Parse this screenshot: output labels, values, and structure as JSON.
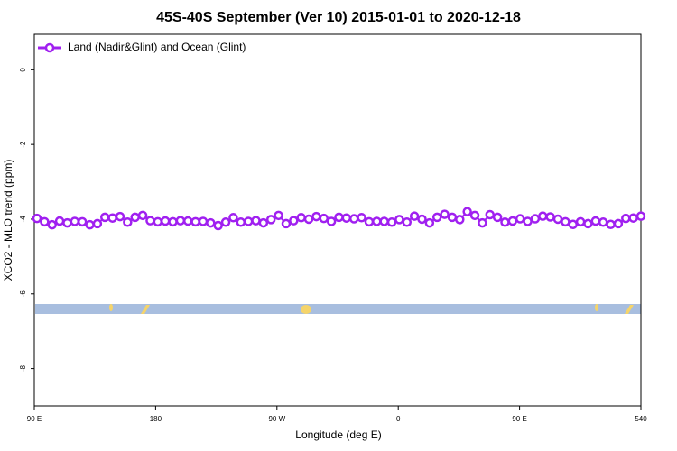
{
  "chart_data": {
    "type": "line",
    "title": "45S-40S September (Ver 10)   2015-01-01 to 2020-12-18",
    "xlabel": "Longitude (deg E)",
    "ylabel": "XCO2 - MLO trend (ppm)",
    "x": [
      92,
      97.6,
      103.2,
      108.8,
      114.4,
      120,
      125.6,
      131.2,
      136.8,
      142.4,
      148,
      153.6,
      159.2,
      164.8,
      170.4,
      176,
      181.6,
      187.2,
      192.8,
      198.4,
      204,
      209.6,
      215.2,
      220.8,
      226.4,
      232,
      237.6,
      243.2,
      248.8,
      254.4,
      260,
      265.6,
      271.2,
      276.8,
      282.4,
      288,
      293.6,
      299.2,
      304.8,
      310.4,
      316,
      321.6,
      327.2,
      332.8,
      338.4,
      344,
      349.6,
      355.2,
      360.8,
      366.4,
      372,
      377.6,
      383.2,
      388.8,
      394.4,
      400,
      405.6,
      411.2,
      416.8,
      422.4,
      428,
      433.6,
      439.2,
      444.8,
      450.4,
      456,
      461.6,
      467.2,
      472.8,
      478.4,
      484,
      489.6,
      495.2,
      500.8,
      506.4,
      512,
      517.6,
      523.2,
      528.8,
      534.4,
      540
    ],
    "series": [
      {
        "name": "Land (Nadir&Glint) and Ocean (Glint)",
        "color": "#a020f0",
        "values": [
          -3.98,
          -4.07,
          -4.15,
          -4.05,
          -4.1,
          -4.06,
          -4.07,
          -4.15,
          -4.12,
          -3.95,
          -3.97,
          -3.93,
          -4.08,
          -3.95,
          -3.9,
          -4.04,
          -4.07,
          -4.05,
          -4.07,
          -4.04,
          -4.05,
          -4.07,
          -4.06,
          -4.1,
          -4.17,
          -4.08,
          -3.96,
          -4.08,
          -4.06,
          -4.04,
          -4.1,
          -4.01,
          -3.9,
          -4.12,
          -4.04,
          -3.96,
          -4.0,
          -3.93,
          -3.98,
          -4.06,
          -3.95,
          -3.97,
          -3.99,
          -3.96,
          -4.07,
          -4.06,
          -4.06,
          -4.08,
          -4.01,
          -4.08,
          -3.92,
          -4.0,
          -4.1,
          -3.95,
          -3.87,
          -3.95,
          -4.01,
          -3.8,
          -3.9,
          -4.1,
          -3.88,
          -3.95,
          -4.08,
          -4.05,
          -3.99,
          -4.06,
          -3.99,
          -3.92,
          -3.94,
          -4.0,
          -4.07,
          -4.14,
          -4.07,
          -4.12,
          -4.05,
          -4.08,
          -4.14,
          -4.12,
          -3.98,
          -3.97,
          -3.92
        ]
      }
    ],
    "xlim": [
      90,
      540
    ],
    "xticks": [
      {
        "value": 90,
        "label": "90 E"
      },
      180,
      {
        "value": 270,
        "label": "90 W"
      },
      {
        "value": 360,
        "label": "0"
      },
      {
        "value": 450,
        "label": "90 E"
      },
      540
    ],
    "ylim": [
      -9.0,
      0.95
    ],
    "yticks": [
      0,
      -2,
      -4,
      -6,
      -8
    ],
    "legend": "upper left"
  }
}
